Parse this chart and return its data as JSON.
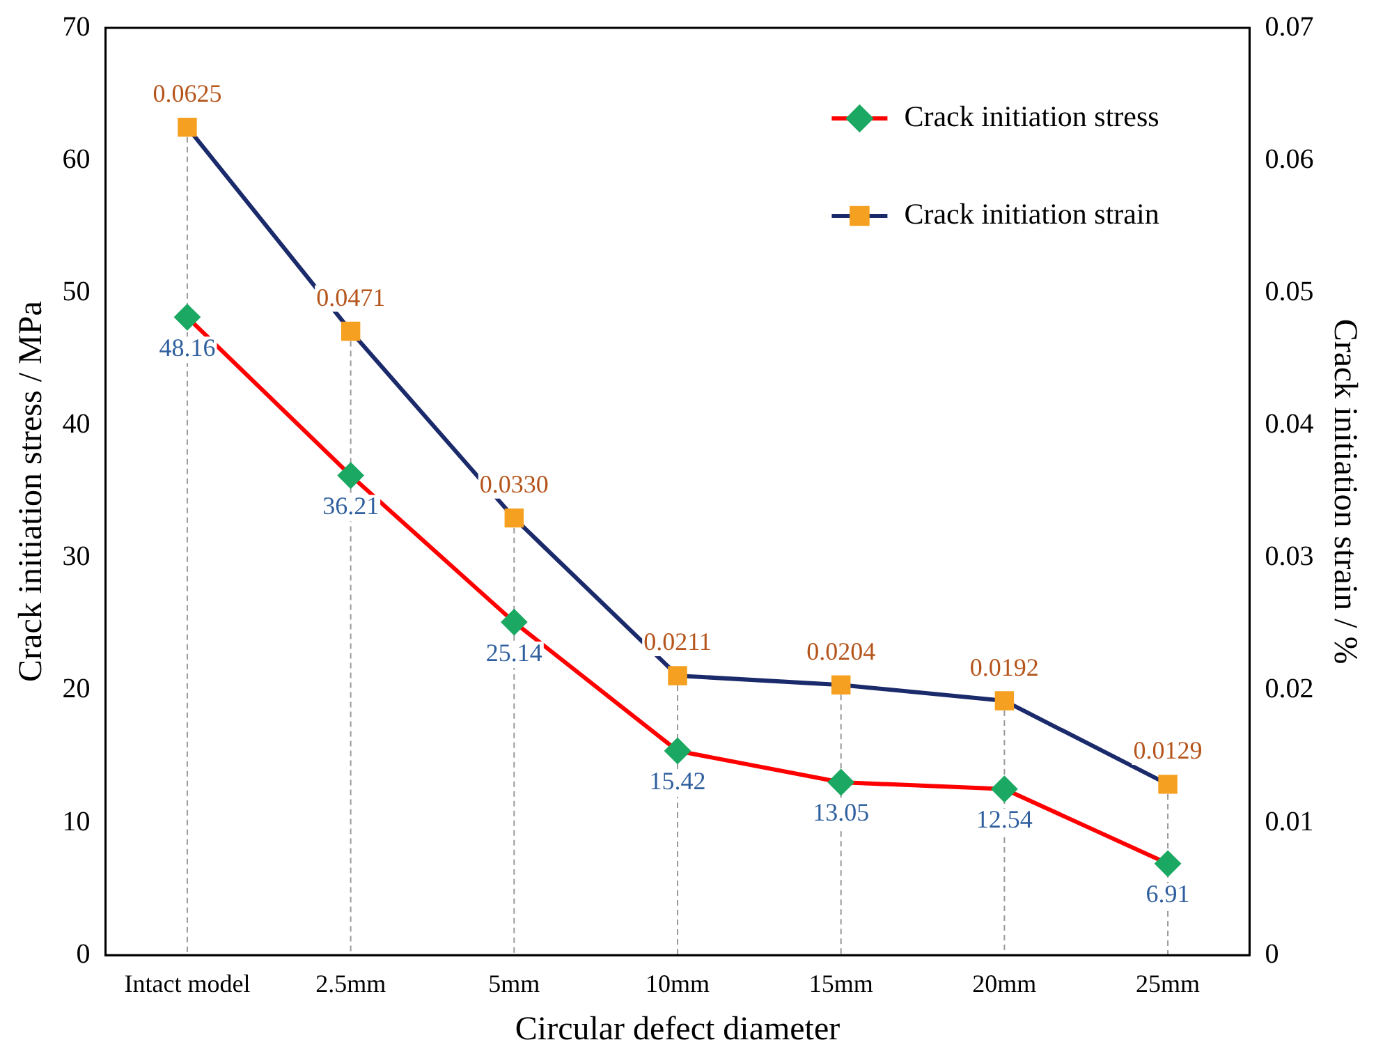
{
  "chart_data": {
    "type": "line",
    "xlabel": "Circular defect diameter",
    "ylabel": "Crack initiation stress / MPa",
    "y2label": "Crack initiation strain / %",
    "categories": [
      "Intact model",
      "2.5mm",
      "5mm",
      "10mm",
      "15mm",
      "20mm",
      "25mm"
    ],
    "series": [
      {
        "name": "Crack initiation stress",
        "color": "#ff0000",
        "marker": "diamond",
        "values": [
          48.16,
          36.21,
          25.14,
          15.42,
          13.05,
          12.54,
          6.91
        ],
        "value_labels": [
          "48.16",
          "36.21",
          "25.14",
          "15.42",
          "13.05",
          "12.54",
          "6.91"
        ]
      },
      {
        "name": "Crack initiation strain",
        "color": "#1b2a6b",
        "marker": "square",
        "axis": "y2",
        "values": [
          0.0625,
          0.0471,
          0.033,
          0.0211,
          0.0204,
          0.0192,
          0.0129
        ],
        "value_labels": [
          "0.0625",
          "0.0471",
          "0.0330",
          "0.0211",
          "0.0204",
          "0.0192",
          "0.0129"
        ]
      }
    ],
    "ylim": [
      0,
      70
    ],
    "yticks": [
      0,
      10,
      20,
      30,
      40,
      50,
      60,
      70
    ],
    "y2lim": [
      0,
      0.07
    ],
    "y2ticks": [
      {
        "value": 0,
        "label": "0"
      },
      0.01,
      0.02,
      0.03,
      0.04,
      0.05,
      0.06,
      0.07
    ],
    "legend": "top right",
    "grid": "x",
    "line_style": "solid"
  }
}
